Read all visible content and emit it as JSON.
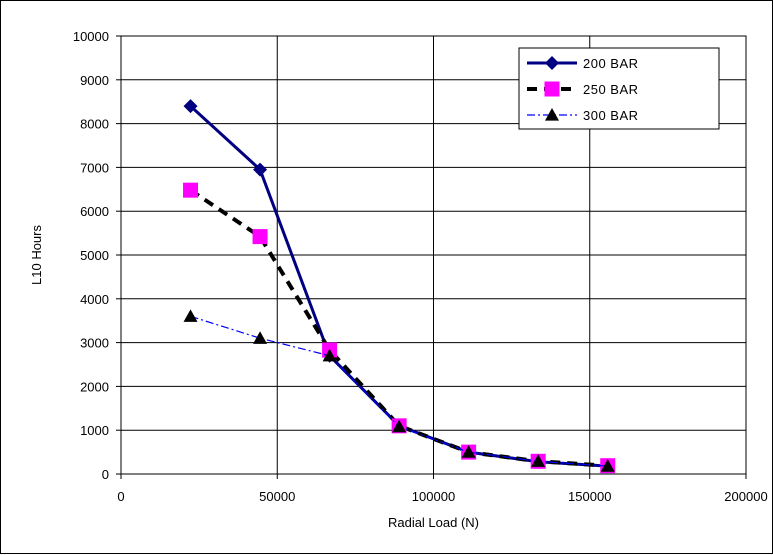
{
  "chart_data": {
    "type": "line",
    "title": "",
    "xlabel": "Radial Load (N)",
    "ylabel": "L10 Hours",
    "xlim": [
      0,
      200000
    ],
    "ylim": [
      0,
      10000
    ],
    "xticks": [
      0,
      50000,
      100000,
      150000,
      200000
    ],
    "yticks": [
      0,
      1000,
      2000,
      3000,
      4000,
      5000,
      6000,
      7000,
      8000,
      9000,
      10000
    ],
    "grid": true,
    "legend_position": "top-right",
    "series": [
      {
        "name": "200 BAR",
        "color": "#000080",
        "line_style": "solid",
        "marker": "diamond",
        "x": [
          22250,
          44500,
          66750,
          89000,
          111250,
          133500,
          155750
        ],
        "y": [
          8400,
          6950,
          2700,
          1100,
          500,
          280,
          180
        ]
      },
      {
        "name": "250 BAR",
        "color": "#ff00ff",
        "line_color": "#000000",
        "line_style": "dashed",
        "marker": "square",
        "x": [
          22250,
          44500,
          66750,
          89000,
          111250,
          133500,
          155750
        ],
        "y": [
          6480,
          5420,
          2830,
          1100,
          500,
          290,
          190
        ]
      },
      {
        "name": "300 BAR",
        "color": "#000000",
        "line_color": "#0000ff",
        "line_style": "dashdot",
        "marker": "triangle",
        "x": [
          22250,
          44500,
          66750,
          89000,
          111250,
          133500,
          155750
        ],
        "y": [
          3600,
          3100,
          2700,
          1080,
          500,
          290,
          180
        ]
      }
    ]
  }
}
